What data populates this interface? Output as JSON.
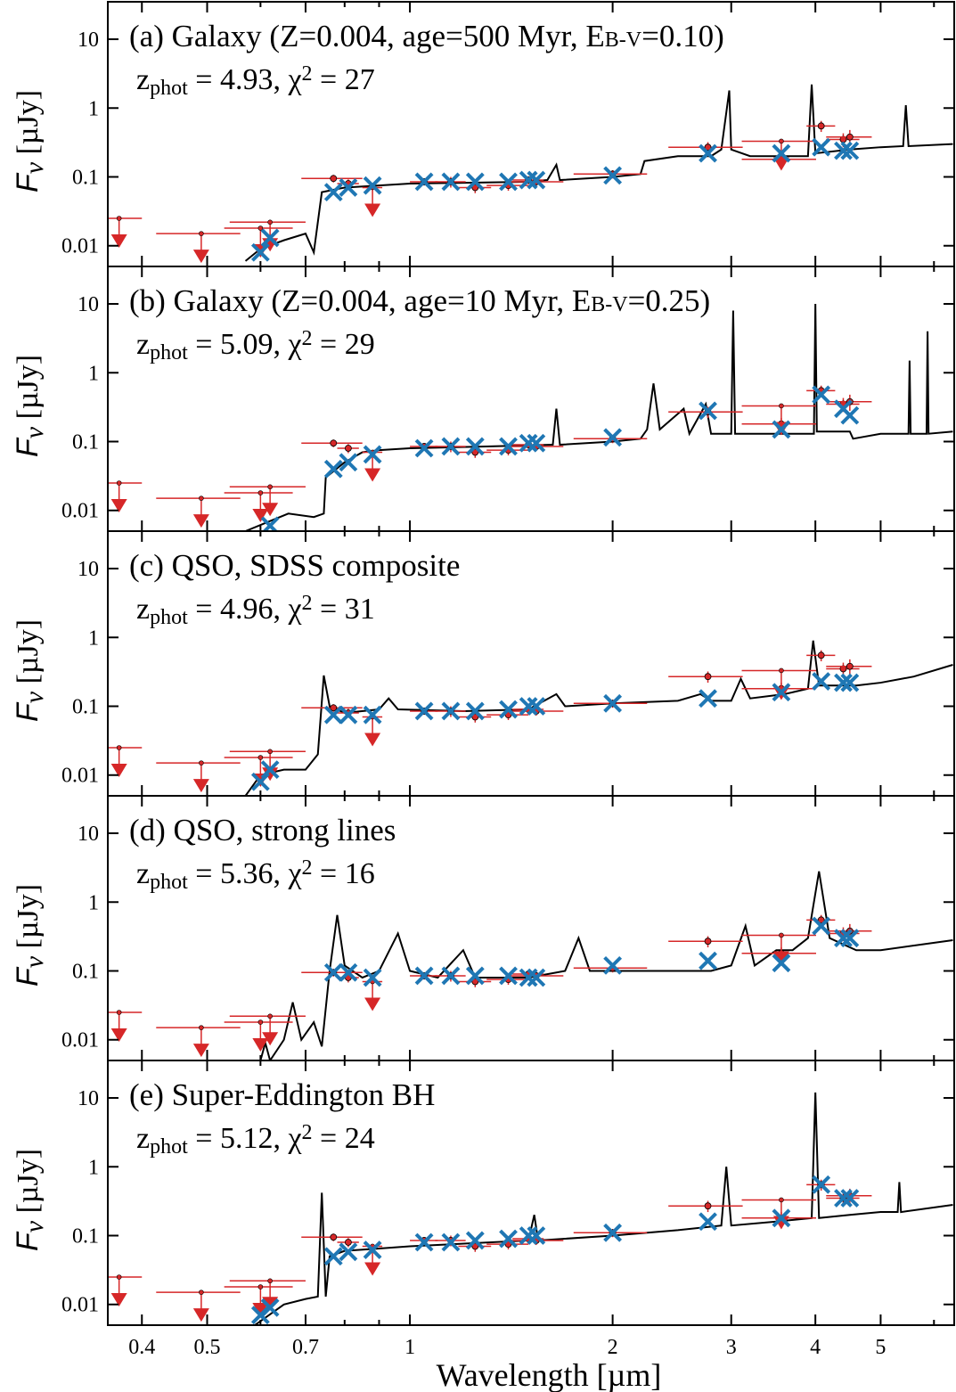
{
  "chart_data": {
    "type": "sed",
    "xlabel": "Wavelength [µm]",
    "ylabel": [
      "F",
      "ν",
      " [µJy]"
    ],
    "xlim": [
      0.356,
      6.43
    ],
    "xticks": [
      0.4,
      0.5,
      0.7,
      1,
      2,
      3,
      4,
      5
    ],
    "xminor": [
      0.6,
      0.8,
      0.9,
      6
    ],
    "ylim": [
      0.005,
      35
    ],
    "yticks": [
      0.01,
      0.1,
      1,
      10
    ],
    "log_x": true,
    "log_y": true,
    "observed": {
      "color": "#d62728",
      "x": [
        0.77,
        0.81,
        1.05,
        1.15,
        1.25,
        1.4,
        1.5,
        1.54,
        2.0,
        2.77,
        3.56,
        4.08,
        4.4,
        4.5
      ],
      "values": [
        0.095,
        0.08,
        0.085,
        0.085,
        0.07,
        0.075,
        0.09,
        0.085,
        0.11,
        0.27,
        0.18,
        0.55,
        0.35,
        0.38
      ],
      "xerr": [
        0.08,
        0.03,
        0.05,
        0.06,
        0.07,
        0.1,
        0.08,
        0.15,
        0.25,
        0.35,
        0.45,
        0.2,
        0.25,
        0.35
      ],
      "yerr": [
        0.012,
        0.012,
        0.01,
        0.015,
        0.012,
        0.012,
        0.012,
        0.012,
        0.015,
        0.05,
        0.04,
        0.1,
        0.08,
        0.1
      ],
      "limit_x": [
        0.37,
        0.49,
        0.6,
        0.62,
        0.88,
        3.56
      ],
      "limit_values": [
        0.025,
        0.015,
        0.018,
        0.022,
        0.07,
        0.33
      ],
      "limit_xerr": [
        0.03,
        0.07,
        0.07,
        0.08,
        0.03,
        0.45
      ]
    },
    "model_color": "#1f77b4",
    "spectrum_color": "#000000",
    "panels": [
      {
        "title": [
          "(a) Galaxy (Z=0.004, age=500 Myr, E",
          "B-V",
          "=0.10)"
        ],
        "fit_label": [
          "z",
          "phot",
          " = 4.93, χ",
          "2",
          " = 27"
        ],
        "model_x": [
          0.6,
          0.62,
          0.77,
          0.81,
          0.88,
          1.05,
          1.15,
          1.25,
          1.4,
          1.5,
          1.54,
          2.0,
          2.77,
          3.56,
          4.08,
          4.4,
          4.5
        ],
        "model_values": [
          0.008,
          0.013,
          0.06,
          0.07,
          0.075,
          0.085,
          0.085,
          0.085,
          0.085,
          0.09,
          0.09,
          0.105,
          0.22,
          0.22,
          0.27,
          0.24,
          0.24
        ],
        "spectrum": {
          "x": [
            0.57,
            0.6,
            0.65,
            0.7,
            0.72,
            0.74,
            0.8,
            0.9,
            1.0,
            1.2,
            1.5,
            1.6,
            1.65,
            1.67,
            2.0,
            2.2,
            2.23,
            2.5,
            2.8,
            2.9,
            2.98,
            3.0,
            3.2,
            3.6,
            3.9,
            3.95,
            4.0,
            4.5,
            5.0,
            5.4,
            5.45,
            5.5,
            6.4
          ],
          "y": [
            0.006,
            0.009,
            0.012,
            0.015,
            0.008,
            0.06,
            0.07,
            0.075,
            0.08,
            0.082,
            0.085,
            0.09,
            0.15,
            0.09,
            0.1,
            0.11,
            0.17,
            0.2,
            0.2,
            0.25,
            1.8,
            0.25,
            0.2,
            0.2,
            0.2,
            2.2,
            0.22,
            0.25,
            0.27,
            0.28,
            1.1,
            0.28,
            0.3
          ]
        }
      },
      {
        "title": [
          "(b) Galaxy (Z=0.004, age=10 Myr, E",
          "B-V",
          "=0.25)"
        ],
        "fit_label": [
          "z",
          "phot",
          " = 5.09, χ",
          "2",
          " = 29"
        ],
        "model_x": [
          0.62,
          0.77,
          0.81,
          0.88,
          1.05,
          1.15,
          1.25,
          1.4,
          1.5,
          1.54,
          2.0,
          2.77,
          3.56,
          4.08,
          4.4,
          4.5
        ],
        "model_values": [
          0.006,
          0.04,
          0.05,
          0.065,
          0.08,
          0.085,
          0.085,
          0.085,
          0.095,
          0.095,
          0.115,
          0.28,
          0.15,
          0.48,
          0.3,
          0.24
        ],
        "spectrum": {
          "x": [
            0.57,
            0.62,
            0.66,
            0.72,
            0.745,
            0.75,
            0.8,
            0.85,
            0.9,
            1.0,
            1.3,
            1.63,
            1.65,
            1.67,
            2.0,
            2.2,
            2.25,
            2.3,
            2.35,
            2.55,
            2.6,
            2.75,
            2.8,
            3.0,
            3.02,
            3.04,
            3.5,
            3.98,
            4.0,
            4.02,
            4.5,
            4.55,
            5.0,
            5.5,
            5.52,
            5.54,
            5.85,
            5.87,
            5.89,
            6.4
          ],
          "y": [
            0.005,
            0.007,
            0.009,
            0.008,
            0.009,
            0.03,
            0.05,
            0.07,
            0.075,
            0.08,
            0.085,
            0.09,
            0.3,
            0.09,
            0.1,
            0.11,
            0.15,
            0.7,
            0.15,
            0.3,
            0.13,
            0.35,
            0.13,
            0.13,
            8,
            0.13,
            0.13,
            0.13,
            10,
            0.14,
            0.14,
            0.11,
            0.13,
            0.13,
            1.5,
            0.13,
            0.13,
            4,
            0.13,
            0.14
          ]
        }
      },
      {
        "title": [
          "(c) QSO, SDSS composite"
        ],
        "fit_label": [
          "z",
          "phot",
          " = 4.96, χ",
          "2",
          " = 31"
        ],
        "model_x": [
          0.6,
          0.62,
          0.77,
          0.81,
          0.88,
          1.05,
          1.15,
          1.25,
          1.4,
          1.5,
          1.54,
          2.0,
          2.77,
          3.56,
          4.08,
          4.4,
          4.5
        ],
        "model_values": [
          0.008,
          0.012,
          0.075,
          0.075,
          0.075,
          0.085,
          0.085,
          0.085,
          0.09,
          0.1,
          0.1,
          0.11,
          0.13,
          0.16,
          0.23,
          0.22,
          0.22
        ],
        "spectrum": {
          "x": [
            0.57,
            0.6,
            0.65,
            0.7,
            0.73,
            0.745,
            0.76,
            0.8,
            0.9,
            0.93,
            0.96,
            1.2,
            1.5,
            1.65,
            1.7,
            2.0,
            2.5,
            2.7,
            2.8,
            3.0,
            3.1,
            3.2,
            3.6,
            3.9,
            3.97,
            4.05,
            4.6,
            5.0,
            5.6,
            6.4
          ],
          "y": [
            0.005,
            0.01,
            0.012,
            0.012,
            0.02,
            0.28,
            0.1,
            0.08,
            0.09,
            0.13,
            0.09,
            0.085,
            0.09,
            0.15,
            0.1,
            0.11,
            0.12,
            0.15,
            0.12,
            0.12,
            0.25,
            0.13,
            0.15,
            0.18,
            0.9,
            0.2,
            0.2,
            0.22,
            0.27,
            0.4
          ]
        }
      },
      {
        "title": [
          "(d) QSO, strong lines"
        ],
        "fit_label": [
          "z",
          "phot",
          " = 5.36, χ",
          "2",
          " = 16"
        ],
        "model_x": [
          0.77,
          0.81,
          0.88,
          1.05,
          1.15,
          1.25,
          1.4,
          1.5,
          1.54,
          2.0,
          2.77,
          3.56,
          4.08,
          4.4,
          4.5
        ],
        "model_values": [
          0.095,
          0.095,
          0.08,
          0.085,
          0.085,
          0.085,
          0.085,
          0.08,
          0.08,
          0.12,
          0.14,
          0.13,
          0.45,
          0.3,
          0.3
        ],
        "spectrum": {
          "x": [
            0.6,
            0.61,
            0.62,
            0.65,
            0.67,
            0.69,
            0.72,
            0.74,
            0.76,
            0.78,
            0.8,
            0.85,
            0.9,
            0.96,
            1.0,
            1.1,
            1.2,
            1.25,
            1.5,
            1.7,
            1.78,
            1.85,
            2.2,
            2.5,
            2.8,
            3.0,
            3.15,
            3.25,
            3.5,
            3.7,
            3.9,
            4.05,
            4.2,
            4.6,
            5.0,
            6.4
          ],
          "y": [
            0.005,
            0.009,
            0.005,
            0.01,
            0.035,
            0.01,
            0.018,
            0.008,
            0.1,
            0.65,
            0.12,
            0.08,
            0.1,
            0.35,
            0.1,
            0.08,
            0.2,
            0.08,
            0.08,
            0.1,
            0.3,
            0.1,
            0.1,
            0.1,
            0.1,
            0.12,
            0.45,
            0.12,
            0.2,
            0.2,
            0.3,
            2.8,
            0.3,
            0.2,
            0.2,
            0.28
          ]
        }
      },
      {
        "title": [
          "(e) Super-Eddington BH"
        ],
        "fit_label": [
          "z",
          "phot",
          " = 5.12, χ",
          "2",
          " = 24"
        ],
        "model_x": [
          0.6,
          0.62,
          0.77,
          0.81,
          0.88,
          1.05,
          1.15,
          1.25,
          1.4,
          1.5,
          1.54,
          2.0,
          2.77,
          3.56,
          4.08,
          4.4,
          4.5
        ],
        "model_values": [
          0.007,
          0.009,
          0.05,
          0.058,
          0.062,
          0.08,
          0.08,
          0.085,
          0.09,
          0.1,
          0.1,
          0.11,
          0.16,
          0.18,
          0.55,
          0.35,
          0.35
        ],
        "spectrum": {
          "x": [
            0.57,
            0.65,
            0.7,
            0.73,
            0.74,
            0.75,
            0.76,
            0.8,
            0.9,
            1.0,
            1.5,
            1.53,
            1.55,
            2.0,
            2.5,
            2.9,
            2.95,
            3.0,
            3.5,
            3.95,
            4.0,
            4.05,
            4.5,
            5.0,
            5.3,
            5.33,
            5.36,
            6.4
          ],
          "y": [
            0.004,
            0.01,
            0.012,
            0.013,
            0.42,
            0.013,
            0.05,
            0.06,
            0.065,
            0.07,
            0.085,
            0.2,
            0.085,
            0.1,
            0.12,
            0.14,
            1.0,
            0.14,
            0.16,
            0.18,
            12,
            0.18,
            0.2,
            0.22,
            0.22,
            0.6,
            0.22,
            0.28
          ]
        }
      }
    ]
  }
}
